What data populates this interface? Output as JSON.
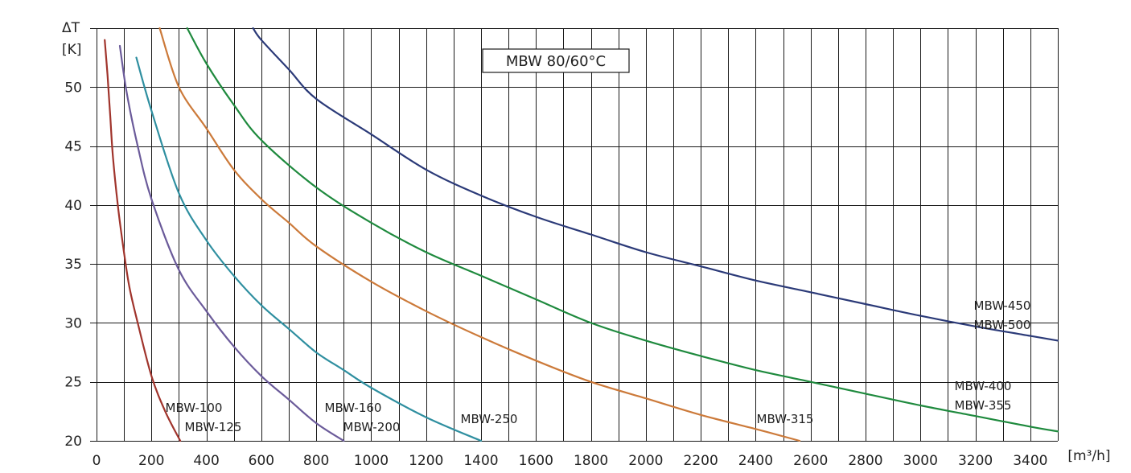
{
  "chart_data": {
    "type": "line",
    "title": "MBW 80/60°C",
    "ylabel_line1": "ΔT",
    "ylabel_line2": "[K]",
    "xlabel": "[m³/h]",
    "xlim": [
      0,
      3500
    ],
    "ylim": [
      20,
      55
    ],
    "x_grid_step": 100,
    "x_ticks": [
      0,
      200,
      400,
      600,
      800,
      1000,
      1200,
      1400,
      1600,
      1800,
      2000,
      2200,
      2400,
      2600,
      2800,
      3000,
      3200,
      3400
    ],
    "y_ticks": [
      20,
      25,
      30,
      35,
      40,
      45,
      50
    ],
    "grid": true,
    "series": [
      {
        "name": "MBW-100 / MBW-125",
        "labels": [
          "MBW-100",
          "MBW-125"
        ],
        "color": "#a0342c",
        "x": [
          30,
          40,
          50,
          60,
          80,
          100,
          120,
          150,
          200,
          250,
          305
        ],
        "y": [
          54,
          51,
          47.5,
          44,
          39.5,
          36,
          33,
          30,
          25.5,
          22.5,
          20
        ]
      },
      {
        "name": "MBW-160 / MBW-200",
        "labels": [
          "MBW-160",
          "MBW-200"
        ],
        "color": "#6b5b9a",
        "x": [
          85,
          110,
          150,
          200,
          300,
          400,
          500,
          600,
          700,
          800,
          900
        ],
        "y": [
          53.5,
          49.5,
          45,
          40.5,
          34.5,
          31,
          28,
          25.5,
          23.5,
          21.5,
          20
        ]
      },
      {
        "name": "MBW-250",
        "labels": [
          "MBW-250"
        ],
        "color": "#2f8fa0",
        "x": [
          145,
          200,
          300,
          400,
          500,
          600,
          700,
          800,
          900,
          1000,
          1200,
          1400
        ],
        "y": [
          52.5,
          48,
          41,
          37,
          34,
          31.5,
          29.5,
          27.5,
          26,
          24.5,
          22,
          20
        ]
      },
      {
        "name": "MBW-315",
        "labels": [
          "MBW-315"
        ],
        "color": "#cc7a3a",
        "x": [
          230,
          300,
          400,
          500,
          600,
          700,
          800,
          1000,
          1200,
          1400,
          1600,
          1800,
          2000,
          2200,
          2400,
          2560
        ],
        "y": [
          55,
          50,
          46.5,
          43,
          40.5,
          38.5,
          36.5,
          33.5,
          31,
          28.8,
          26.8,
          25,
          23.6,
          22.2,
          21,
          20
        ]
      },
      {
        "name": "MBW-400 / MBW-355",
        "labels": [
          "MBW-400",
          "MBW-355"
        ],
        "color": "#1f8a3e",
        "x": [
          330,
          400,
          500,
          600,
          800,
          1000,
          1200,
          1400,
          1600,
          1800,
          2000,
          2200,
          2400,
          2600,
          2800,
          3000,
          3200,
          3400,
          3500
        ],
        "y": [
          55,
          52,
          48.5,
          45.5,
          41.5,
          38.5,
          36,
          34,
          32,
          30,
          28.5,
          27.2,
          26,
          25,
          24,
          23,
          22.1,
          21.2,
          20.8
        ]
      },
      {
        "name": "MBW-450 / MBW-500",
        "labels": [
          "MBW-450",
          "MBW-500"
        ],
        "color": "#2b3a78",
        "x": [
          570,
          600,
          700,
          800,
          1000,
          1200,
          1400,
          1600,
          1800,
          2000,
          2200,
          2400,
          2600,
          2800,
          3000,
          3200,
          3400,
          3500
        ],
        "y": [
          55,
          54,
          51.5,
          49,
          46,
          43,
          40.8,
          39,
          37.5,
          36,
          34.8,
          33.6,
          32.6,
          31.6,
          30.6,
          29.7,
          28.9,
          28.5
        ]
      }
    ]
  }
}
